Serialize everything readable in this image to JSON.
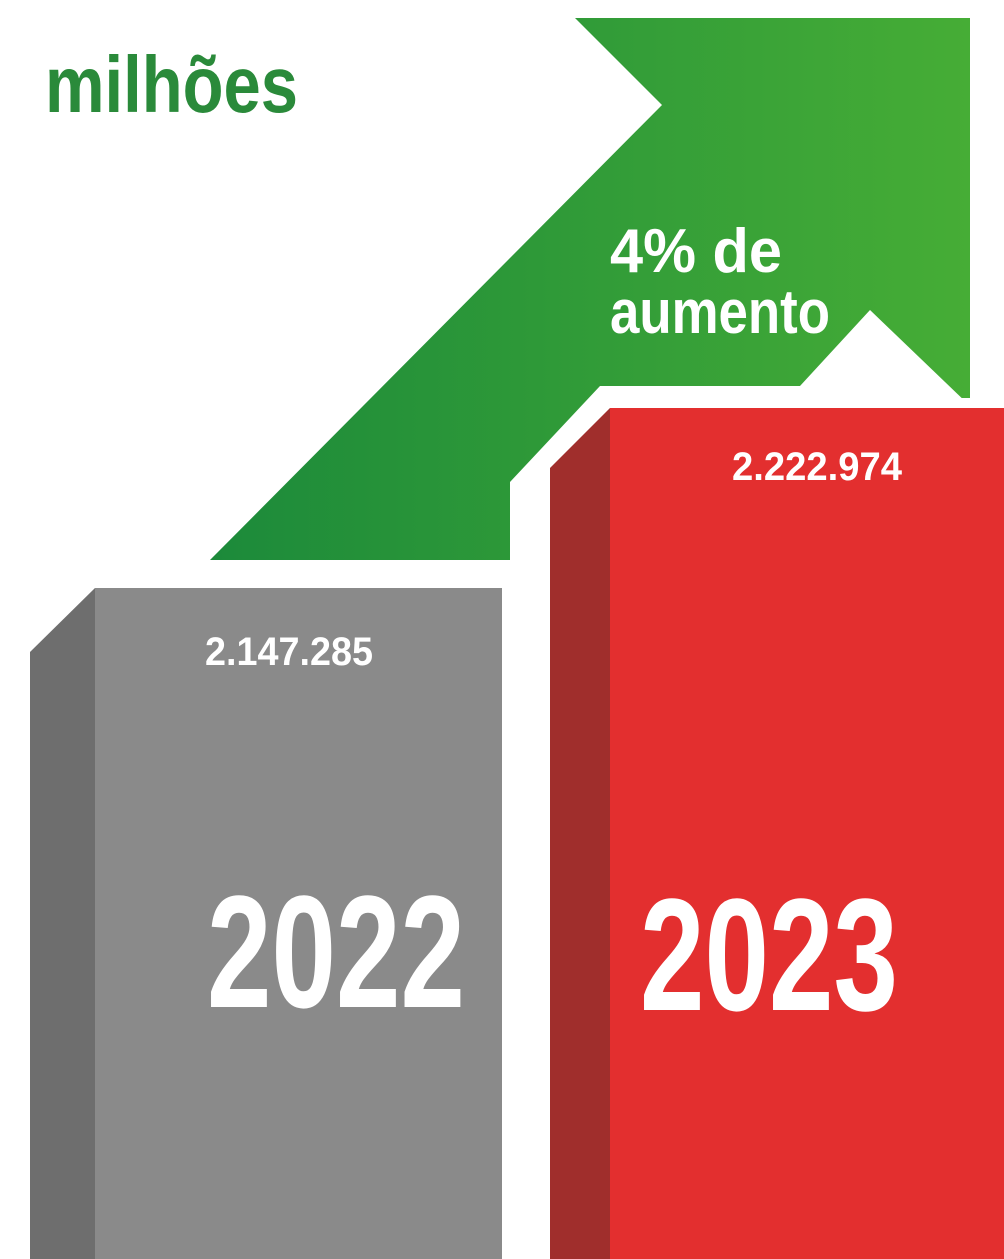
{
  "headline": {
    "unit": "milhões"
  },
  "arrow": {
    "label_lines": [
      "4% de",
      "aumento"
    ]
  },
  "bars": [
    {
      "year": "2022",
      "value": "2.147.285"
    },
    {
      "year": "2023",
      "value": "2.222.974"
    }
  ]
}
